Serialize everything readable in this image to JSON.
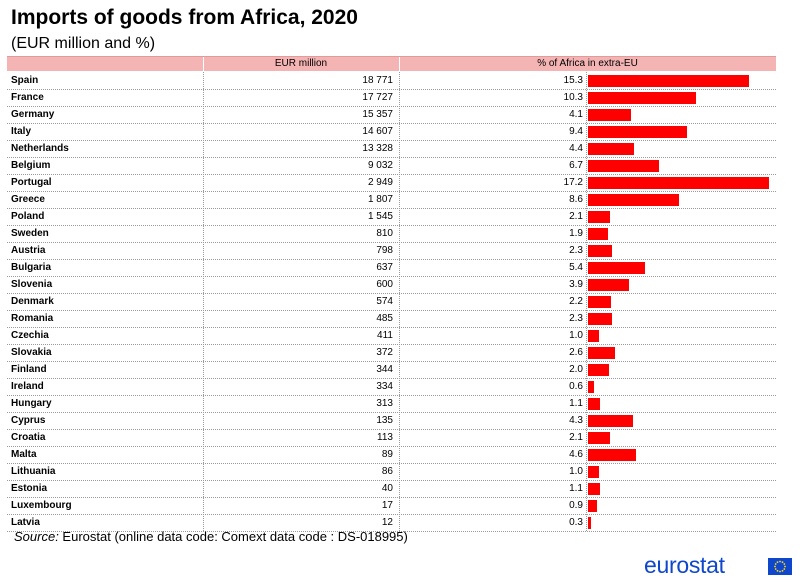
{
  "title": "Imports of goods from Africa, 2020",
  "subtitle": "(EUR million and %)",
  "columns": {
    "value": "EUR million",
    "share": "% of Africa in extra-EU"
  },
  "source": {
    "label": "Source:",
    "text": " Eurostat (online data code: Comext data code : DS-018995)"
  },
  "logo": {
    "text": "eurostat",
    "color": "#0e47cb"
  },
  "bar_color": "#ff0000",
  "header_color": "#f4b4b4",
  "chart_data": {
    "type": "table",
    "title": "Imports of goods from Africa, 2020",
    "subtitle": "(EUR million and %)",
    "columns": [
      "EUR million",
      "% of Africa in extra-EU"
    ],
    "rows": [
      {
        "country": "Spain",
        "eur_million": "18 771",
        "value": 18771,
        "share": 15.3
      },
      {
        "country": "France",
        "eur_million": "17 727",
        "value": 17727,
        "share": 10.3
      },
      {
        "country": "Germany",
        "eur_million": "15 357",
        "value": 15357,
        "share": 4.1
      },
      {
        "country": "Italy",
        "eur_million": "14 607",
        "value": 14607,
        "share": 9.4
      },
      {
        "country": "Netherlands",
        "eur_million": "13 328",
        "value": 13328,
        "share": 4.4
      },
      {
        "country": "Belgium",
        "eur_million": "9 032",
        "value": 9032,
        "share": 6.7
      },
      {
        "country": "Portugal",
        "eur_million": "2 949",
        "value": 2949,
        "share": 17.2
      },
      {
        "country": "Greece",
        "eur_million": "1 807",
        "value": 1807,
        "share": 8.6
      },
      {
        "country": "Poland",
        "eur_million": "1 545",
        "value": 1545,
        "share": 2.1
      },
      {
        "country": "Sweden",
        "eur_million": "810",
        "value": 810,
        "share": 1.9
      },
      {
        "country": "Austria",
        "eur_million": "798",
        "value": 798,
        "share": 2.3
      },
      {
        "country": "Bulgaria",
        "eur_million": "637",
        "value": 637,
        "share": 5.4
      },
      {
        "country": "Slovenia",
        "eur_million": "600",
        "value": 600,
        "share": 3.9
      },
      {
        "country": "Denmark",
        "eur_million": "574",
        "value": 574,
        "share": 2.2
      },
      {
        "country": "Romania",
        "eur_million": "485",
        "value": 485,
        "share": 2.3
      },
      {
        "country": "Czechia",
        "eur_million": "411",
        "value": 411,
        "share": 1.0
      },
      {
        "country": "Slovakia",
        "eur_million": "372",
        "value": 372,
        "share": 2.6
      },
      {
        "country": "Finland",
        "eur_million": "344",
        "value": 344,
        "share": 2.0
      },
      {
        "country": "Ireland",
        "eur_million": "334",
        "value": 334,
        "share": 0.6
      },
      {
        "country": "Hungary",
        "eur_million": "313",
        "value": 313,
        "share": 1.1
      },
      {
        "country": "Cyprus",
        "eur_million": "135",
        "value": 135,
        "share": 4.3
      },
      {
        "country": "Croatia",
        "eur_million": "113",
        "value": 113,
        "share": 2.1
      },
      {
        "country": "Malta",
        "eur_million": "89",
        "value": 89,
        "share": 4.6
      },
      {
        "country": "Lithuania",
        "eur_million": "86",
        "value": 86,
        "share": 1.0
      },
      {
        "country": "Estonia",
        "eur_million": "40",
        "value": 40,
        "share": 1.1
      },
      {
        "country": "Luxembourg",
        "eur_million": "17",
        "value": 17,
        "share": 0.9
      },
      {
        "country": "Latvia",
        "eur_million": "12",
        "value": 12,
        "share": 0.3
      }
    ],
    "bar_max": 17.2
  }
}
